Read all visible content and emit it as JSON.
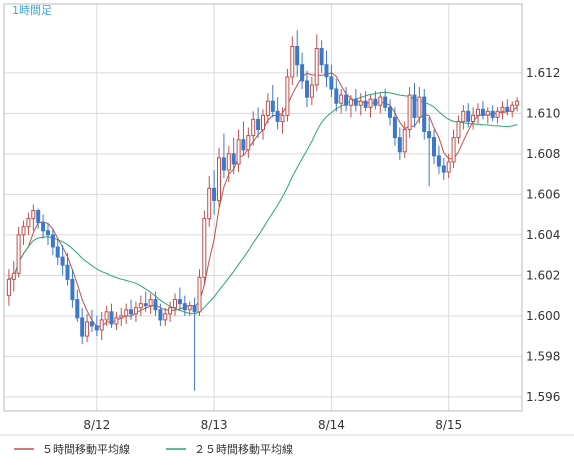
{
  "chart_data": {
    "type": "candlestick",
    "timeframe_label": "1時間足",
    "y_axis": {
      "ticks": [
        "1.596",
        "1.598",
        "1.600",
        "1.602",
        "1.604",
        "1.606",
        "1.608",
        "1.610",
        "1.612"
      ],
      "range": [
        1.5953,
        1.6154
      ],
      "grid": true
    },
    "x_axis": {
      "ticks": [
        {
          "label": "8/12",
          "index": 18
        },
        {
          "label": "8/13",
          "index": 42
        },
        {
          "label": "8/14",
          "index": 66
        },
        {
          "label": "8/15",
          "index": 90
        }
      ],
      "grid": true
    },
    "candles": [
      [
        1.601,
        1.6023,
        1.6005,
        1.6018
      ],
      [
        1.6018,
        1.6027,
        1.6012,
        1.6021
      ],
      [
        1.6021,
        1.6044,
        1.6019,
        1.604
      ],
      [
        1.604,
        1.6047,
        1.6035,
        1.6044
      ],
      [
        1.6044,
        1.6051,
        1.604,
        1.6048
      ],
      [
        1.6048,
        1.6055,
        1.6042,
        1.6052
      ],
      [
        1.6052,
        1.6053,
        1.6043,
        1.6046
      ],
      [
        1.6046,
        1.605,
        1.6038,
        1.6042
      ],
      [
        1.6042,
        1.6046,
        1.6035,
        1.604
      ],
      [
        1.604,
        1.6043,
        1.603,
        1.6034
      ],
      [
        1.6034,
        1.6038,
        1.6025,
        1.6029
      ],
      [
        1.6029,
        1.6035,
        1.602,
        1.6025
      ],
      [
        1.6025,
        1.6031,
        1.6015,
        1.6018
      ],
      [
        1.6018,
        1.6023,
        1.6004,
        1.6008
      ],
      [
        1.6008,
        1.6013,
        1.5997,
        1.5999
      ],
      [
        1.5999,
        1.6004,
        1.5986,
        1.599
      ],
      [
        1.599,
        1.6001,
        1.5987,
        1.5997
      ],
      [
        1.5997,
        1.6003,
        1.5992,
        1.5995
      ],
      [
        1.5995,
        1.6,
        1.599,
        1.5993
      ],
      [
        1.5993,
        1.6002,
        1.5988,
        1.5998
      ],
      [
        1.5998,
        1.6005,
        1.5995,
        1.6002
      ],
      [
        1.6002,
        1.6006,
        1.5994,
        1.5996
      ],
      [
        1.5996,
        1.6002,
        1.5993,
        1.5999
      ],
      [
        1.5999,
        1.6004,
        1.5995,
        1.6
      ],
      [
        1.6,
        1.6006,
        1.5996,
        1.6003
      ],
      [
        1.6003,
        1.6008,
        1.5998,
        1.6001
      ],
      [
        1.6001,
        1.6007,
        1.5997,
        1.6004
      ],
      [
        1.6004,
        1.601,
        1.6,
        1.6006
      ],
      [
        1.6006,
        1.6012,
        1.6002,
        1.6005
      ],
      [
        1.6005,
        1.6011,
        1.6001,
        1.6008
      ],
      [
        1.6008,
        1.6012,
        1.6,
        1.6003
      ],
      [
        1.6003,
        1.6006,
        1.5995,
        1.5998
      ],
      [
        1.5998,
        1.6004,
        1.5995,
        1.6001
      ],
      [
        1.6001,
        1.6007,
        1.5997,
        1.6004
      ],
      [
        1.6004,
        1.6011,
        1.6,
        1.6008
      ],
      [
        1.6008,
        1.6014,
        1.6003,
        1.6006
      ],
      [
        1.6006,
        1.601,
        1.6,
        1.6003
      ],
      [
        1.6003,
        1.6007,
        1.6,
        1.6005
      ],
      [
        1.6005,
        1.6009,
        1.5963,
        1.6002
      ],
      [
        1.6002,
        1.6023,
        1.6,
        1.6019
      ],
      [
        1.6019,
        1.6052,
        1.6015,
        1.6048
      ],
      [
        1.6048,
        1.6069,
        1.6044,
        1.6063
      ],
      [
        1.6063,
        1.6072,
        1.605,
        1.6057
      ],
      [
        1.6057,
        1.6083,
        1.6054,
        1.6078
      ],
      [
        1.6078,
        1.609,
        1.6068,
        1.6072
      ],
      [
        1.6072,
        1.6084,
        1.6066,
        1.608
      ],
      [
        1.608,
        1.6088,
        1.607,
        1.6075
      ],
      [
        1.6075,
        1.6092,
        1.6071,
        1.6087
      ],
      [
        1.6087,
        1.6096,
        1.6079,
        1.6082
      ],
      [
        1.6082,
        1.6093,
        1.6078,
        1.6089
      ],
      [
        1.6089,
        1.6101,
        1.6084,
        1.6097
      ],
      [
        1.6097,
        1.6103,
        1.6088,
        1.6092
      ],
      [
        1.6092,
        1.6102,
        1.6087,
        1.6099
      ],
      [
        1.6099,
        1.611,
        1.6095,
        1.6106
      ],
      [
        1.6106,
        1.6114,
        1.6098,
        1.6101
      ],
      [
        1.6101,
        1.6108,
        1.6092,
        1.6096
      ],
      [
        1.6096,
        1.6103,
        1.609,
        1.6099
      ],
      [
        1.6099,
        1.6122,
        1.6096,
        1.6118
      ],
      [
        1.6118,
        1.6138,
        1.6114,
        1.6133
      ],
      [
        1.6133,
        1.6141,
        1.6118,
        1.6124
      ],
      [
        1.6124,
        1.613,
        1.6112,
        1.6116
      ],
      [
        1.6116,
        1.6121,
        1.6103,
        1.6108
      ],
      [
        1.6108,
        1.6118,
        1.6104,
        1.6114
      ],
      [
        1.6114,
        1.6139,
        1.6111,
        1.6132
      ],
      [
        1.6132,
        1.6136,
        1.612,
        1.6124
      ],
      [
        1.6124,
        1.6131,
        1.6113,
        1.6118
      ],
      [
        1.6118,
        1.6124,
        1.6108,
        1.6112
      ],
      [
        1.6112,
        1.6117,
        1.6101,
        1.6105
      ],
      [
        1.6105,
        1.6112,
        1.61,
        1.6109
      ],
      [
        1.6109,
        1.6113,
        1.6101,
        1.6104
      ],
      [
        1.6104,
        1.6109,
        1.6098,
        1.6107
      ],
      [
        1.6107,
        1.6112,
        1.6101,
        1.6104
      ],
      [
        1.6104,
        1.611,
        1.6099,
        1.6106
      ],
      [
        1.6106,
        1.6111,
        1.6101,
        1.6103
      ],
      [
        1.6103,
        1.6109,
        1.6098,
        1.6107
      ],
      [
        1.6107,
        1.6111,
        1.6102,
        1.6104
      ],
      [
        1.6104,
        1.611,
        1.61,
        1.6108
      ],
      [
        1.6108,
        1.6112,
        1.6101,
        1.6103
      ],
      [
        1.6103,
        1.6107,
        1.6094,
        1.6098
      ],
      [
        1.6098,
        1.6103,
        1.6084,
        1.6088
      ],
      [
        1.6088,
        1.6093,
        1.6077,
        1.6081
      ],
      [
        1.6081,
        1.6096,
        1.6078,
        1.6092
      ],
      [
        1.6092,
        1.6113,
        1.6088,
        1.6109
      ],
      [
        1.6109,
        1.6115,
        1.6093,
        1.6098
      ],
      [
        1.6098,
        1.6113,
        1.6095,
        1.6108
      ],
      [
        1.6108,
        1.6112,
        1.6087,
        1.6091
      ],
      [
        1.6091,
        1.6098,
        1.6064,
        1.6088
      ],
      [
        1.6088,
        1.6092,
        1.6075,
        1.6079
      ],
      [
        1.6079,
        1.6084,
        1.607,
        1.6074
      ],
      [
        1.6074,
        1.6078,
        1.6067,
        1.6071
      ],
      [
        1.6071,
        1.608,
        1.6068,
        1.6076
      ],
      [
        1.6076,
        1.6092,
        1.6073,
        1.6088
      ],
      [
        1.6088,
        1.6099,
        1.6085,
        1.6096
      ],
      [
        1.6096,
        1.6104,
        1.6092,
        1.6101
      ],
      [
        1.6101,
        1.6105,
        1.6093,
        1.6096
      ],
      [
        1.6096,
        1.6103,
        1.6092,
        1.6099
      ],
      [
        1.6099,
        1.6105,
        1.6095,
        1.6102
      ],
      [
        1.6102,
        1.6106,
        1.6097,
        1.6099
      ],
      [
        1.6099,
        1.6103,
        1.6095,
        1.6101
      ],
      [
        1.6101,
        1.6104,
        1.6096,
        1.6098
      ],
      [
        1.6098,
        1.6103,
        1.6095,
        1.6101
      ],
      [
        1.6101,
        1.6106,
        1.6097,
        1.6103
      ],
      [
        1.6103,
        1.6107,
        1.6099,
        1.6101
      ],
      [
        1.6101,
        1.6106,
        1.6098,
        1.6104
      ],
      [
        1.6104,
        1.6108,
        1.6101,
        1.6106
      ]
    ],
    "series": [
      {
        "name": "５時間移動平均線",
        "period": 5,
        "color": "#c0504d"
      },
      {
        "name": "２５時間移動平均線",
        "period": 25,
        "color": "#2aa86b"
      }
    ],
    "colors": {
      "up_candle": "#ffffff",
      "up_candle_border": "#c0504d",
      "down_candle": "#3d78c9",
      "down_candle_border": "#3d78c9",
      "grid": "#d9d9d9",
      "frame": "#bbbbbb",
      "timeframe_label": "#3fa6d6"
    }
  }
}
